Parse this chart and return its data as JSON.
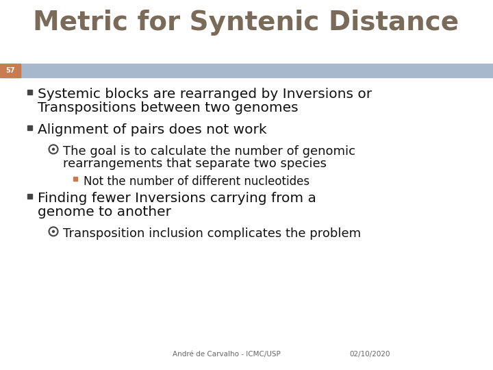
{
  "title": "Metric for Syntenic Distance",
  "title_color": "#7a6a5a",
  "slide_number": "57",
  "slide_number_bg": "#c87a50",
  "header_bar_color": "#a8b8cc",
  "background_color": "#ffffff",
  "bullet_square_color": "#444444",
  "bullet_circle_color": "#444444",
  "bullet_square2_color": "#c87a50",
  "footer_left": "André de Carvalho - ICMC/USP",
  "footer_right": "02/10/2020",
  "footer_color": "#666666",
  "content": [
    {
      "level": 0,
      "type": "square",
      "text": "Systemic blocks are rearranged by Inversions or\nTranspositions between two genomes"
    },
    {
      "level": 0,
      "type": "square",
      "text": "Alignment of pairs does not work"
    },
    {
      "level": 1,
      "type": "circle",
      "text": "The goal is to calculate the number of genomic\nrearrangements that separate two species"
    },
    {
      "level": 2,
      "type": "square2",
      "text": "Not the number of different nucleotides"
    },
    {
      "level": 0,
      "type": "square",
      "text": "Finding fewer Inversions carrying from a\ngenome to another"
    },
    {
      "level": 1,
      "type": "circle",
      "text": "Transposition inclusion complicates the problem"
    }
  ]
}
